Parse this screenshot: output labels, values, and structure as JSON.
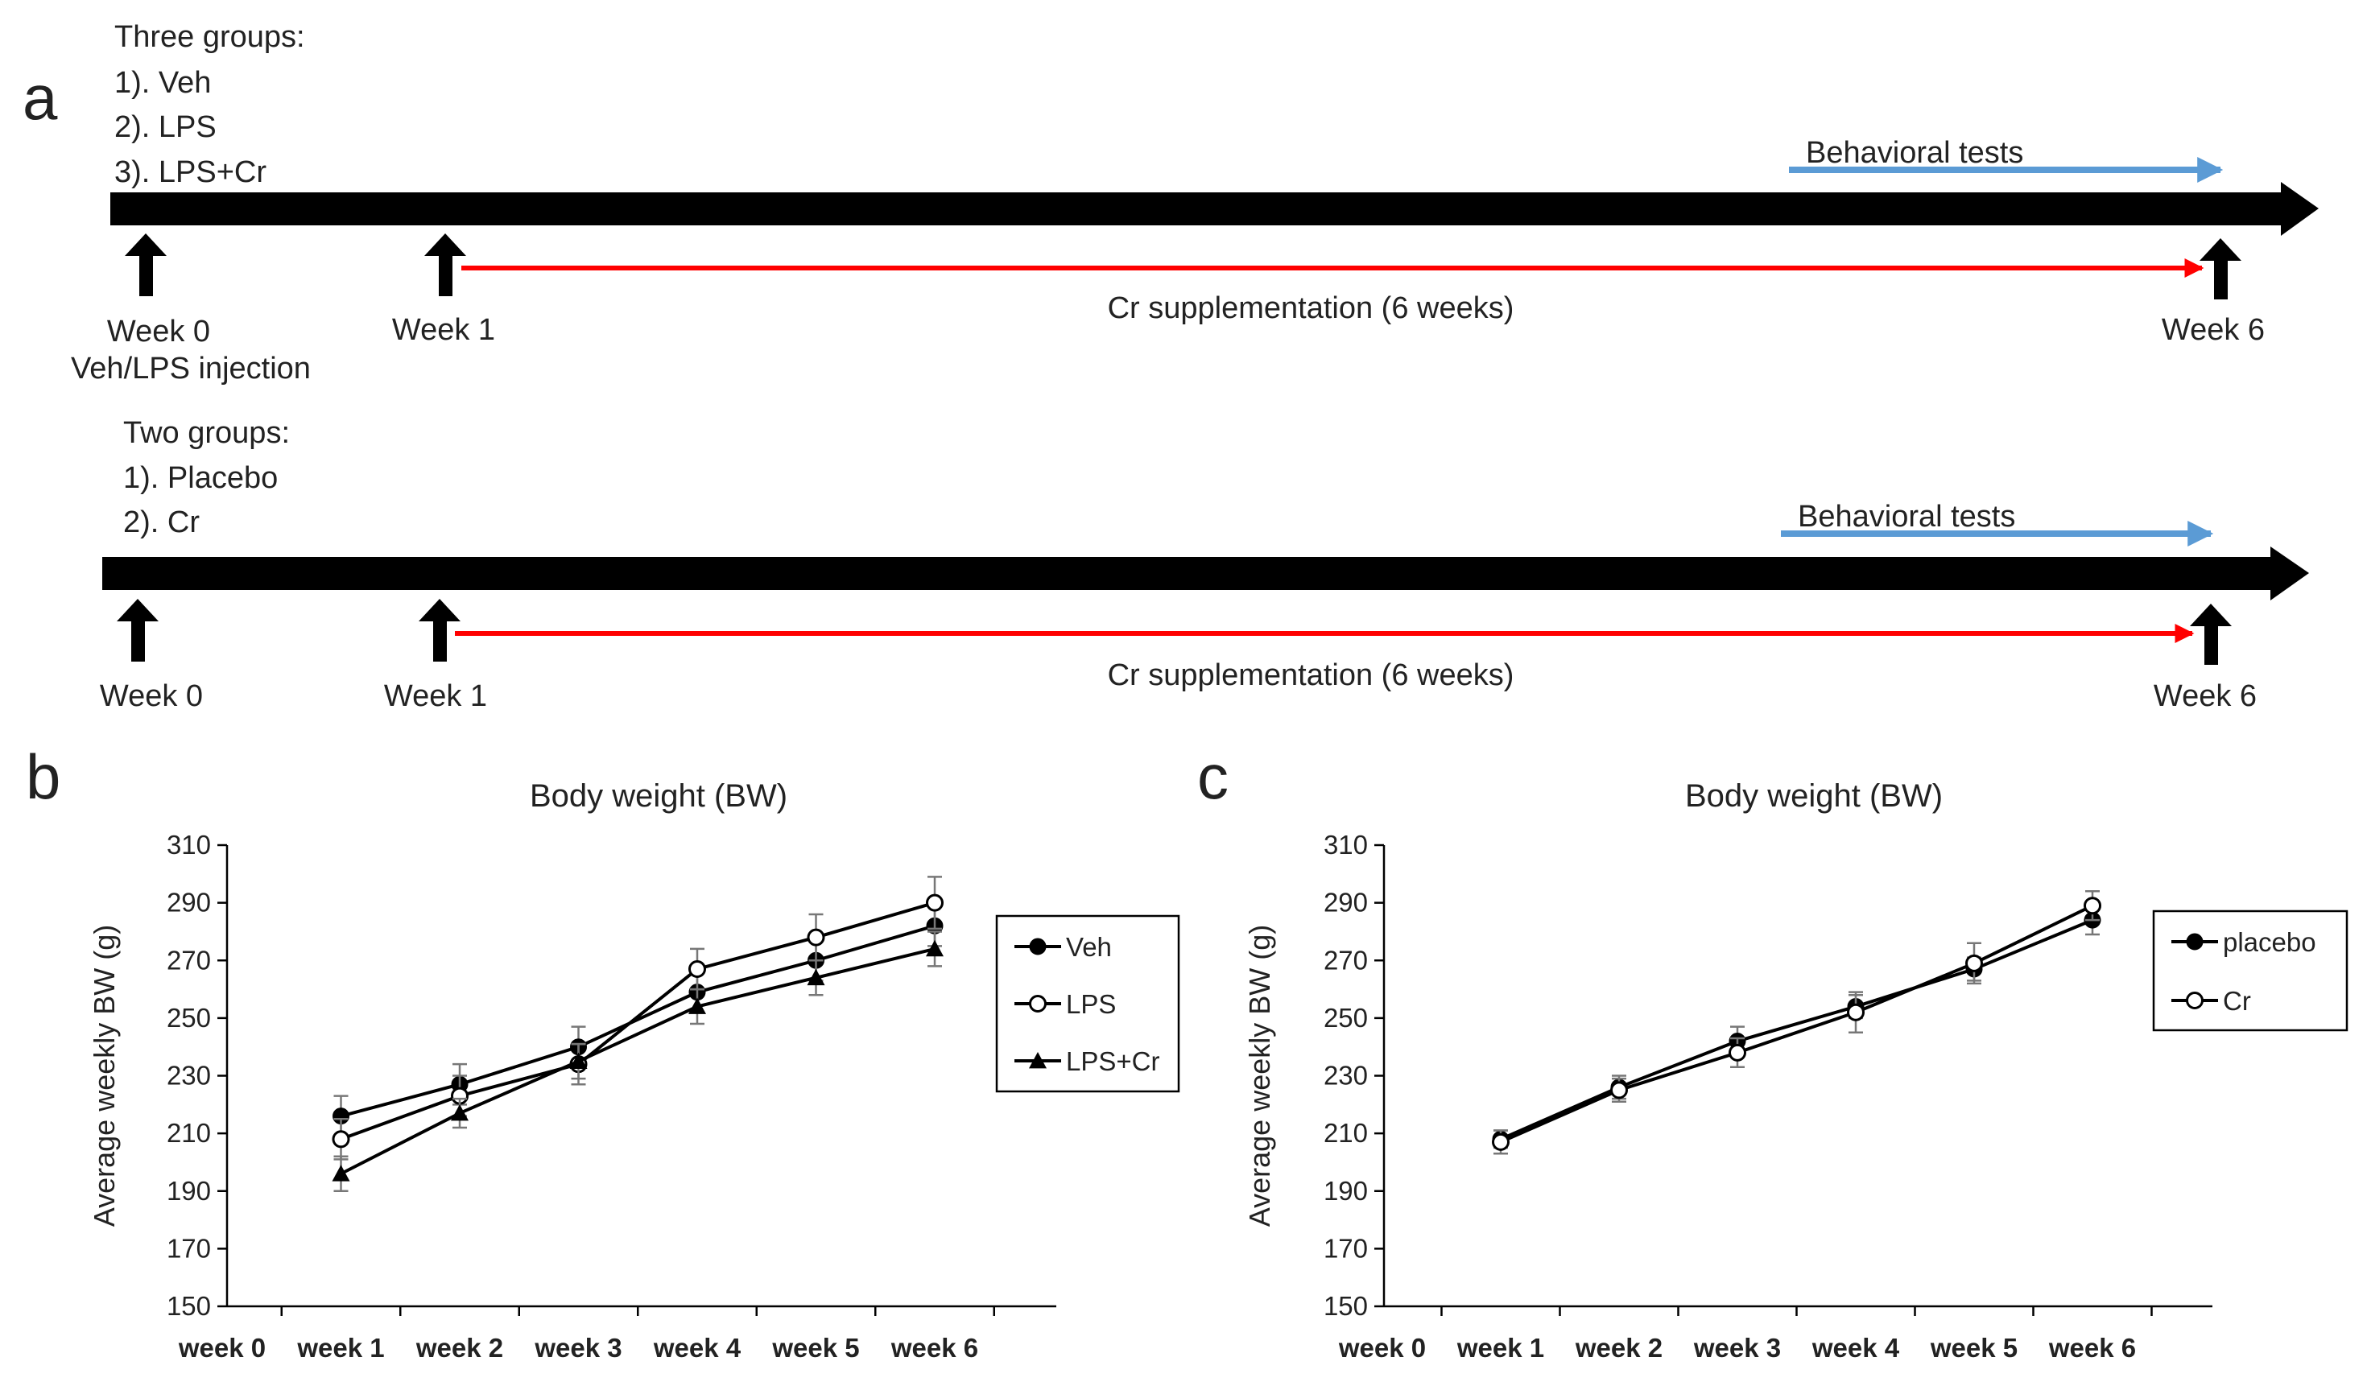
{
  "panel_a": {
    "label": "a",
    "colors": {
      "timeline": "#000000",
      "cr_arrow": "#ff0000",
      "behavior_arrow": "#5b9bd5"
    },
    "top": {
      "groups_title": "Three groups:",
      "groups": [
        "1). Veh",
        "2). LPS",
        "3). LPS+Cr"
      ],
      "behavioral": "Behavioral tests",
      "week0": "Week 0",
      "week1": "Week 1",
      "week6": "Week 6",
      "injection": "Veh/LPS injection",
      "supplementation": "Cr supplementation (6 weeks)"
    },
    "bottom": {
      "groups_title": "Two groups:",
      "groups": [
        "1). Placebo",
        "2). Cr"
      ],
      "behavioral": "Behavioral tests",
      "week0": "Week 0",
      "week1": "Week 1",
      "week6": "Week 6",
      "supplementation": "Cr supplementation (6 weeks)"
    }
  },
  "chart_data": [
    {
      "panel": "b",
      "type": "line",
      "title": "Body weight (BW)",
      "ylabel": "Average weekly BW (g)",
      "xlabel": "",
      "ylim": [
        150,
        310
      ],
      "yticks": [
        150,
        170,
        190,
        210,
        230,
        250,
        270,
        290,
        310
      ],
      "categories": [
        "week 0",
        "week 1",
        "week 2",
        "week 3",
        "week 4",
        "week 5",
        "week 6"
      ],
      "legend_position": "right",
      "grid": false,
      "series": [
        {
          "name": "Veh",
          "marker": "filled-circle",
          "values": [
            null,
            216,
            227,
            240,
            259,
            270,
            282
          ],
          "errors": [
            null,
            7,
            7,
            7,
            7,
            7,
            7
          ]
        },
        {
          "name": "LPS",
          "marker": "open-circle",
          "values": [
            null,
            208,
            223,
            234,
            267,
            278,
            290
          ],
          "errors": [
            null,
            7,
            7,
            7,
            7,
            8,
            9
          ]
        },
        {
          "name": "LPS+Cr",
          "marker": "filled-triangle",
          "values": [
            null,
            196,
            217,
            235,
            254,
            264,
            274
          ],
          "errors": [
            null,
            6,
            5,
            6,
            6,
            6,
            6
          ]
        }
      ]
    },
    {
      "panel": "c",
      "type": "line",
      "title": "Body weight (BW)",
      "ylabel": "Average weekly BW (g)",
      "xlabel": "",
      "ylim": [
        150,
        310
      ],
      "yticks": [
        150,
        170,
        190,
        210,
        230,
        250,
        270,
        290,
        310
      ],
      "categories": [
        "week 0",
        "week 1",
        "week 2",
        "week 3",
        "week 4",
        "week 5",
        "week 6"
      ],
      "legend_position": "top-right",
      "grid": false,
      "series": [
        {
          "name": "placebo",
          "marker": "filled-circle",
          "values": [
            null,
            208,
            226,
            242,
            254,
            267,
            284
          ],
          "errors": [
            null,
            3,
            4,
            5,
            4,
            4,
            5
          ]
        },
        {
          "name": "Cr",
          "marker": "open-circle",
          "values": [
            null,
            207,
            225,
            238,
            252,
            269,
            289
          ],
          "errors": [
            null,
            4,
            4,
            5,
            7,
            7,
            5
          ]
        }
      ]
    }
  ]
}
